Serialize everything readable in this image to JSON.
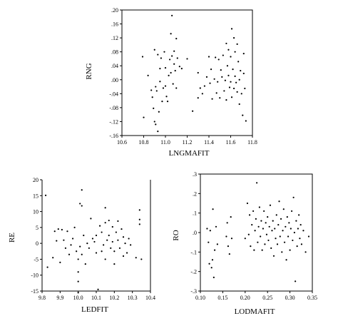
{
  "chart_data": [
    {
      "type": "scatter",
      "xlabel": "LNGMAFIT",
      "ylabel": "RNG",
      "xlim": [
        10.6,
        11.8
      ],
      "ylim": [
        -0.16,
        0.2
      ],
      "xticks": [
        "10.6",
        "10.8",
        "11.0",
        "11.2",
        "11.4",
        "11.6",
        "11.8"
      ],
      "yticks": [
        ".20",
        ".16",
        ".12",
        ".08",
        ".04",
        ".00",
        "-.04",
        "-.08",
        "-.12",
        "-.16"
      ],
      "grid": false,
      "points": [
        [
          10.79,
          0.066
        ],
        [
          10.8,
          -0.108
        ],
        [
          10.84,
          0.012
        ],
        [
          10.87,
          -0.03
        ],
        [
          10.88,
          -0.05
        ],
        [
          10.89,
          -0.082
        ],
        [
          10.9,
          -0.12
        ],
        [
          10.9,
          0.086
        ],
        [
          10.91,
          -0.128
        ],
        [
          10.91,
          -0.02
        ],
        [
          10.92,
          -0.032
        ],
        [
          10.93,
          -0.148
        ],
        [
          10.93,
          0.072
        ],
        [
          10.94,
          -0.092
        ],
        [
          10.95,
          0.032
        ],
        [
          10.95,
          -0.005
        ],
        [
          10.96,
          0.062
        ],
        [
          10.97,
          -0.062
        ],
        [
          10.98,
          -0.024
        ],
        [
          10.99,
          0.08
        ],
        [
          11.0,
          -0.018
        ],
        [
          11.0,
          0.034
        ],
        [
          11.01,
          -0.048
        ],
        [
          11.02,
          -0.062
        ],
        [
          11.03,
          0.012
        ],
        [
          11.04,
          0.058
        ],
        [
          11.05,
          0.132
        ],
        [
          11.05,
          0.02
        ],
        [
          11.06,
          0.184
        ],
        [
          11.06,
          0.068
        ],
        [
          11.07,
          -0.012
        ],
        [
          11.08,
          0.082
        ],
        [
          11.08,
          0.045
        ],
        [
          11.09,
          0.026
        ],
        [
          11.1,
          0.118
        ],
        [
          11.1,
          -0.024
        ],
        [
          11.11,
          0.062
        ],
        [
          11.13,
          0.038
        ],
        [
          11.15,
          0.032
        ],
        [
          11.2,
          0.06
        ],
        [
          11.25,
          -0.09
        ],
        [
          11.3,
          -0.052
        ],
        [
          11.3,
          0.02
        ],
        [
          11.32,
          -0.024
        ],
        [
          11.34,
          -0.04
        ],
        [
          11.36,
          -0.018
        ],
        [
          11.38,
          0.008
        ],
        [
          11.4,
          0.066
        ],
        [
          11.41,
          -0.01
        ],
        [
          11.42,
          0.03
        ],
        [
          11.43,
          -0.055
        ],
        [
          11.45,
          0.002
        ],
        [
          11.46,
          0.064
        ],
        [
          11.47,
          -0.038
        ],
        [
          11.48,
          -0.006
        ],
        [
          11.49,
          0.058
        ],
        [
          11.5,
          -0.052
        ],
        [
          11.51,
          0.028
        ],
        [
          11.52,
          0.008
        ],
        [
          11.53,
          0.07
        ],
        [
          11.54,
          -0.032
        ],
        [
          11.55,
          -0.002
        ],
        [
          11.56,
          0.104
        ],
        [
          11.56,
          -0.058
        ],
        [
          11.57,
          0.04
        ],
        [
          11.58,
          0.086
        ],
        [
          11.58,
          0.012
        ],
        [
          11.59,
          -0.022
        ],
        [
          11.6,
          0.066
        ],
        [
          11.6,
          -0.006
        ],
        [
          11.61,
          0.146
        ],
        [
          11.61,
          -0.05
        ],
        [
          11.62,
          0.03
        ],
        [
          11.63,
          0.12
        ],
        [
          11.63,
          -0.025
        ],
        [
          11.64,
          0.08
        ],
        [
          11.64,
          0.01
        ],
        [
          11.65,
          -0.008
        ],
        [
          11.66,
          0.102
        ],
        [
          11.66,
          -0.035
        ],
        [
          11.67,
          0.052
        ],
        [
          11.68,
          0.0
        ],
        [
          11.68,
          -0.07
        ],
        [
          11.69,
          0.026
        ],
        [
          11.7,
          -0.04
        ],
        [
          11.71,
          -0.102
        ],
        [
          11.72,
          0.018
        ],
        [
          11.72,
          0.075
        ],
        [
          11.73,
          -0.025
        ],
        [
          11.74,
          -0.118
        ]
      ]
    },
    {
      "type": "scatter",
      "xlabel": "LEDFIT",
      "ylabel": "RE",
      "xlim": [
        9.8,
        10.4
      ],
      "ylim": [
        -15,
        20
      ],
      "xticks": [
        "9.8",
        "9.9",
        "10.0",
        "10.1",
        "10.2",
        "10.3",
        "10.4"
      ],
      "yticks": [
        "20",
        "15",
        "10",
        "5",
        "0",
        "-5",
        "-10",
        "-15"
      ],
      "grid": false,
      "points": [
        [
          9.82,
          15.1
        ],
        [
          9.83,
          -7.5
        ],
        [
          9.86,
          -4.5
        ],
        [
          9.87,
          3.8
        ],
        [
          9.88,
          0.8
        ],
        [
          9.89,
          4.5
        ],
        [
          9.9,
          -6.0
        ],
        [
          9.91,
          4.3
        ],
        [
          9.92,
          1.0
        ],
        [
          9.93,
          -1.5
        ],
        [
          9.94,
          3.8
        ],
        [
          9.95,
          -3.5
        ],
        [
          9.96,
          -0.5
        ],
        [
          9.97,
          1.5
        ],
        [
          9.98,
          5.0
        ],
        [
          9.99,
          -2.5
        ],
        [
          10.0,
          -15.5
        ],
        [
          10.0,
          -12.0
        ],
        [
          10.0,
          -9.0
        ],
        [
          10.0,
          -5.0
        ],
        [
          10.01,
          -1.0
        ],
        [
          10.01,
          12.5
        ],
        [
          10.02,
          16.8
        ],
        [
          10.02,
          11.8
        ],
        [
          10.02,
          -3.5
        ],
        [
          10.03,
          2.5
        ],
        [
          10.04,
          -6.5
        ],
        [
          10.05,
          0.0
        ],
        [
          10.06,
          -1.5
        ],
        [
          10.07,
          7.8
        ],
        [
          10.08,
          1.5
        ],
        [
          10.09,
          0.5
        ],
        [
          10.1,
          -3.0
        ],
        [
          10.1,
          2.5
        ],
        [
          10.11,
          -14.5
        ],
        [
          10.12,
          5.5
        ],
        [
          10.13,
          -2.5
        ],
        [
          10.13,
          3.5
        ],
        [
          10.14,
          -0.5
        ],
        [
          10.15,
          6.5
        ],
        [
          10.15,
          11.2
        ],
        [
          10.15,
          -5.0
        ],
        [
          10.16,
          1.0
        ],
        [
          10.17,
          7.2
        ],
        [
          10.17,
          2.5
        ],
        [
          10.18,
          -1.5
        ],
        [
          10.19,
          0.5
        ],
        [
          10.19,
          5.2
        ],
        [
          10.2,
          -2.5
        ],
        [
          10.2,
          -6.5
        ],
        [
          10.21,
          3.5
        ],
        [
          10.22,
          1.0
        ],
        [
          10.22,
          7.0
        ],
        [
          10.23,
          -1.5
        ],
        [
          10.24,
          4.5
        ],
        [
          10.25,
          -4.0
        ],
        [
          10.25,
          2.0
        ],
        [
          10.26,
          0.0
        ],
        [
          10.27,
          -3.0
        ],
        [
          10.28,
          1.5
        ],
        [
          10.29,
          -0.5
        ],
        [
          10.32,
          -4.5
        ],
        [
          10.34,
          6.0
        ],
        [
          10.34,
          7.5
        ],
        [
          10.34,
          10.5
        ],
        [
          10.35,
          -5.0
        ]
      ]
    },
    {
      "type": "scatter",
      "xlabel": "LODMAFIT",
      "ylabel": "RO",
      "xlim": [
        0.1,
        0.35
      ],
      "ylim": [
        -0.3,
        0.3
      ],
      "xticks": [
        "0.10",
        "0.15",
        "0.20",
        "0.25",
        "0.30",
        "0.35"
      ],
      "yticks": [
        ".3",
        ".2",
        ".1",
        ".0",
        "-.1",
        "-.2",
        "-.3"
      ],
      "grid": false,
      "points": [
        [
          0.115,
          0.02
        ],
        [
          0.118,
          -0.05
        ],
        [
          0.12,
          -0.16
        ],
        [
          0.122,
          0.01
        ],
        [
          0.125,
          -0.18
        ],
        [
          0.127,
          -0.14
        ],
        [
          0.128,
          0.12
        ],
        [
          0.13,
          -0.23
        ],
        [
          0.132,
          -0.09
        ],
        [
          0.135,
          0.03
        ],
        [
          0.138,
          -0.06
        ],
        [
          0.158,
          -0.02
        ],
        [
          0.16,
          0.05
        ],
        [
          0.162,
          -0.07
        ],
        [
          0.165,
          -0.11
        ],
        [
          0.168,
          0.08
        ],
        [
          0.17,
          -0.03
        ],
        [
          0.2,
          -0.03
        ],
        [
          0.205,
          0.15
        ],
        [
          0.208,
          -0.01
        ],
        [
          0.21,
          0.09
        ],
        [
          0.212,
          -0.07
        ],
        [
          0.215,
          0.04
        ],
        [
          0.218,
          0.11
        ],
        [
          0.22,
          -0.09
        ],
        [
          0.222,
          0.01
        ],
        [
          0.224,
          0.07
        ],
        [
          0.226,
          0.255
        ],
        [
          0.228,
          -0.05
        ],
        [
          0.23,
          0.03
        ],
        [
          0.232,
          0.13
        ],
        [
          0.234,
          -0.02
        ],
        [
          0.236,
          0.06
        ],
        [
          0.238,
          -0.09
        ],
        [
          0.24,
          0.02
        ],
        [
          0.242,
          0.11
        ],
        [
          0.244,
          -0.06
        ],
        [
          0.246,
          0.05
        ],
        [
          0.248,
          -0.01
        ],
        [
          0.25,
          0.08
        ],
        [
          0.252,
          -0.04
        ],
        [
          0.254,
          0.03
        ],
        [
          0.256,
          0.14
        ],
        [
          0.258,
          -0.08
        ],
        [
          0.26,
          0.01
        ],
        [
          0.262,
          0.06
        ],
        [
          0.264,
          -0.12
        ],
        [
          0.266,
          0.02
        ],
        [
          0.268,
          -0.03
        ],
        [
          0.27,
          0.09
        ],
        [
          0.272,
          -0.06
        ],
        [
          0.274,
          0.04
        ],
        [
          0.276,
          0.16
        ],
        [
          0.278,
          -0.02
        ],
        [
          0.28,
          0.07
        ],
        [
          0.282,
          -0.1
        ],
        [
          0.284,
          0.01
        ],
        [
          0.286,
          0.12
        ],
        [
          0.288,
          -0.05
        ],
        [
          0.29,
          0.03
        ],
        [
          0.292,
          -0.14
        ],
        [
          0.294,
          0.08
        ],
        [
          0.296,
          -0.02
        ],
        [
          0.298,
          0.05
        ],
        [
          0.3,
          -0.09
        ],
        [
          0.302,
          0.02
        ],
        [
          0.304,
          0.11
        ],
        [
          0.306,
          -0.04
        ],
        [
          0.308,
          0.18
        ],
        [
          0.31,
          0.0
        ],
        [
          0.312,
          -0.25
        ],
        [
          0.314,
          0.06
        ],
        [
          0.316,
          -0.07
        ],
        [
          0.318,
          0.02
        ],
        [
          0.32,
          0.09
        ],
        [
          0.322,
          -0.03
        ],
        [
          0.324,
          0.04
        ],
        [
          0.326,
          -0.06
        ],
        [
          0.33,
          0.01
        ],
        [
          0.335,
          -0.1
        ],
        [
          0.342,
          -0.02
        ]
      ]
    }
  ]
}
